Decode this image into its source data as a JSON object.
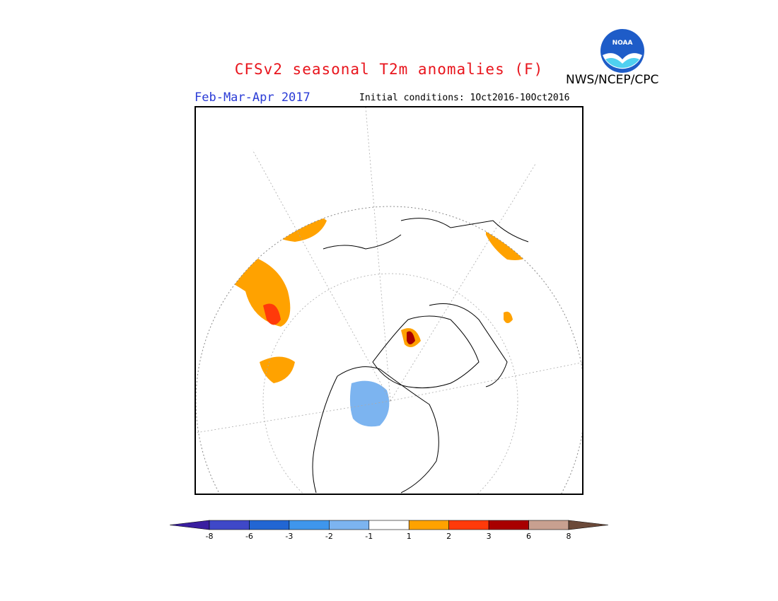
{
  "header": {
    "title": "CFSv2 seasonal T2m anomalies (F)",
    "season": "Feb-Mar-Apr 2017",
    "initial_conditions": "Initial conditions: 1Oct2016-10Oct2016",
    "agency": "NWS/NCEP/CPC",
    "logo_text": "NOAA"
  },
  "colors": {
    "title": "#e8141c",
    "season": "#2a3bd6",
    "warm_1": "#ffa200",
    "warm_2": "#ff3a0a",
    "warm_3": "#a80000",
    "cool_1": "#7cb4f0"
  },
  "legend": {
    "bins": [
      {
        "color": "#3a1fa0"
      },
      {
        "color": "#3f48c8"
      },
      {
        "color": "#2266d3"
      },
      {
        "color": "#3f96ec"
      },
      {
        "color": "#7cb4f0"
      },
      {
        "color": "#ffffff"
      },
      {
        "color": "#ffa200"
      },
      {
        "color": "#ff3a0a"
      },
      {
        "color": "#a80000"
      },
      {
        "color": "#c8a090"
      },
      {
        "color": "#6b4a3a"
      }
    ],
    "labels": [
      "-8",
      "-6",
      "-3",
      "-2",
      "-1",
      "1",
      "2",
      "3",
      "6",
      "8"
    ]
  }
}
